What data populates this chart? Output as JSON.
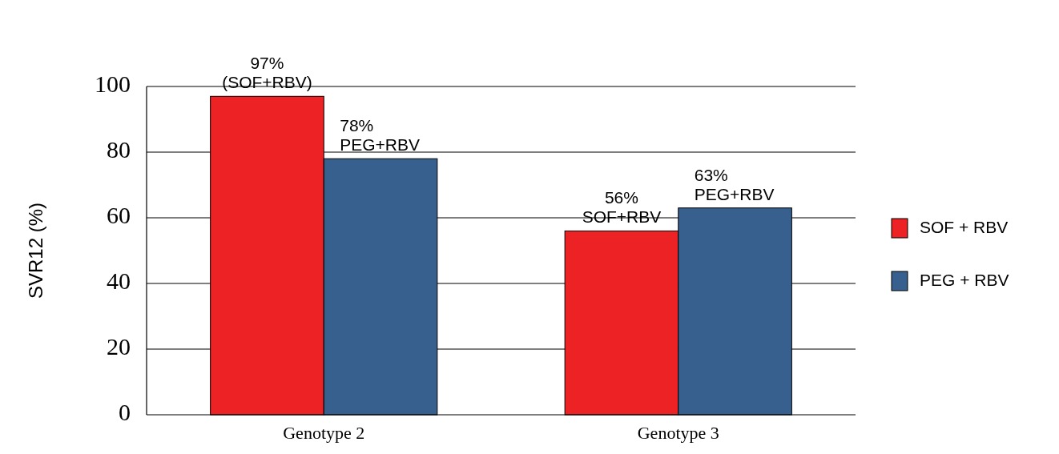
{
  "chart_data": {
    "type": "bar",
    "ylabel": "SVR12 (%)",
    "categories": [
      "Genotype 2",
      "Genotype 3"
    ],
    "series": [
      {
        "name": "SOF + RBV",
        "color": "#ed2224",
        "values": [
          97,
          56
        ],
        "value_labels": [
          "97%\n(SOF+RBV)",
          "56%\nSOF+RBV"
        ]
      },
      {
        "name": "PEG + RBV",
        "color": "#37608f",
        "values": [
          78,
          63
        ],
        "value_labels": [
          "78%\nPEG+RBV",
          "63%\nPEG+RBV"
        ]
      }
    ],
    "ylim": [
      0,
      100
    ],
    "yticks": [
      0,
      20,
      40,
      60,
      80,
      100
    ],
    "grid": "y",
    "legend": "right"
  }
}
